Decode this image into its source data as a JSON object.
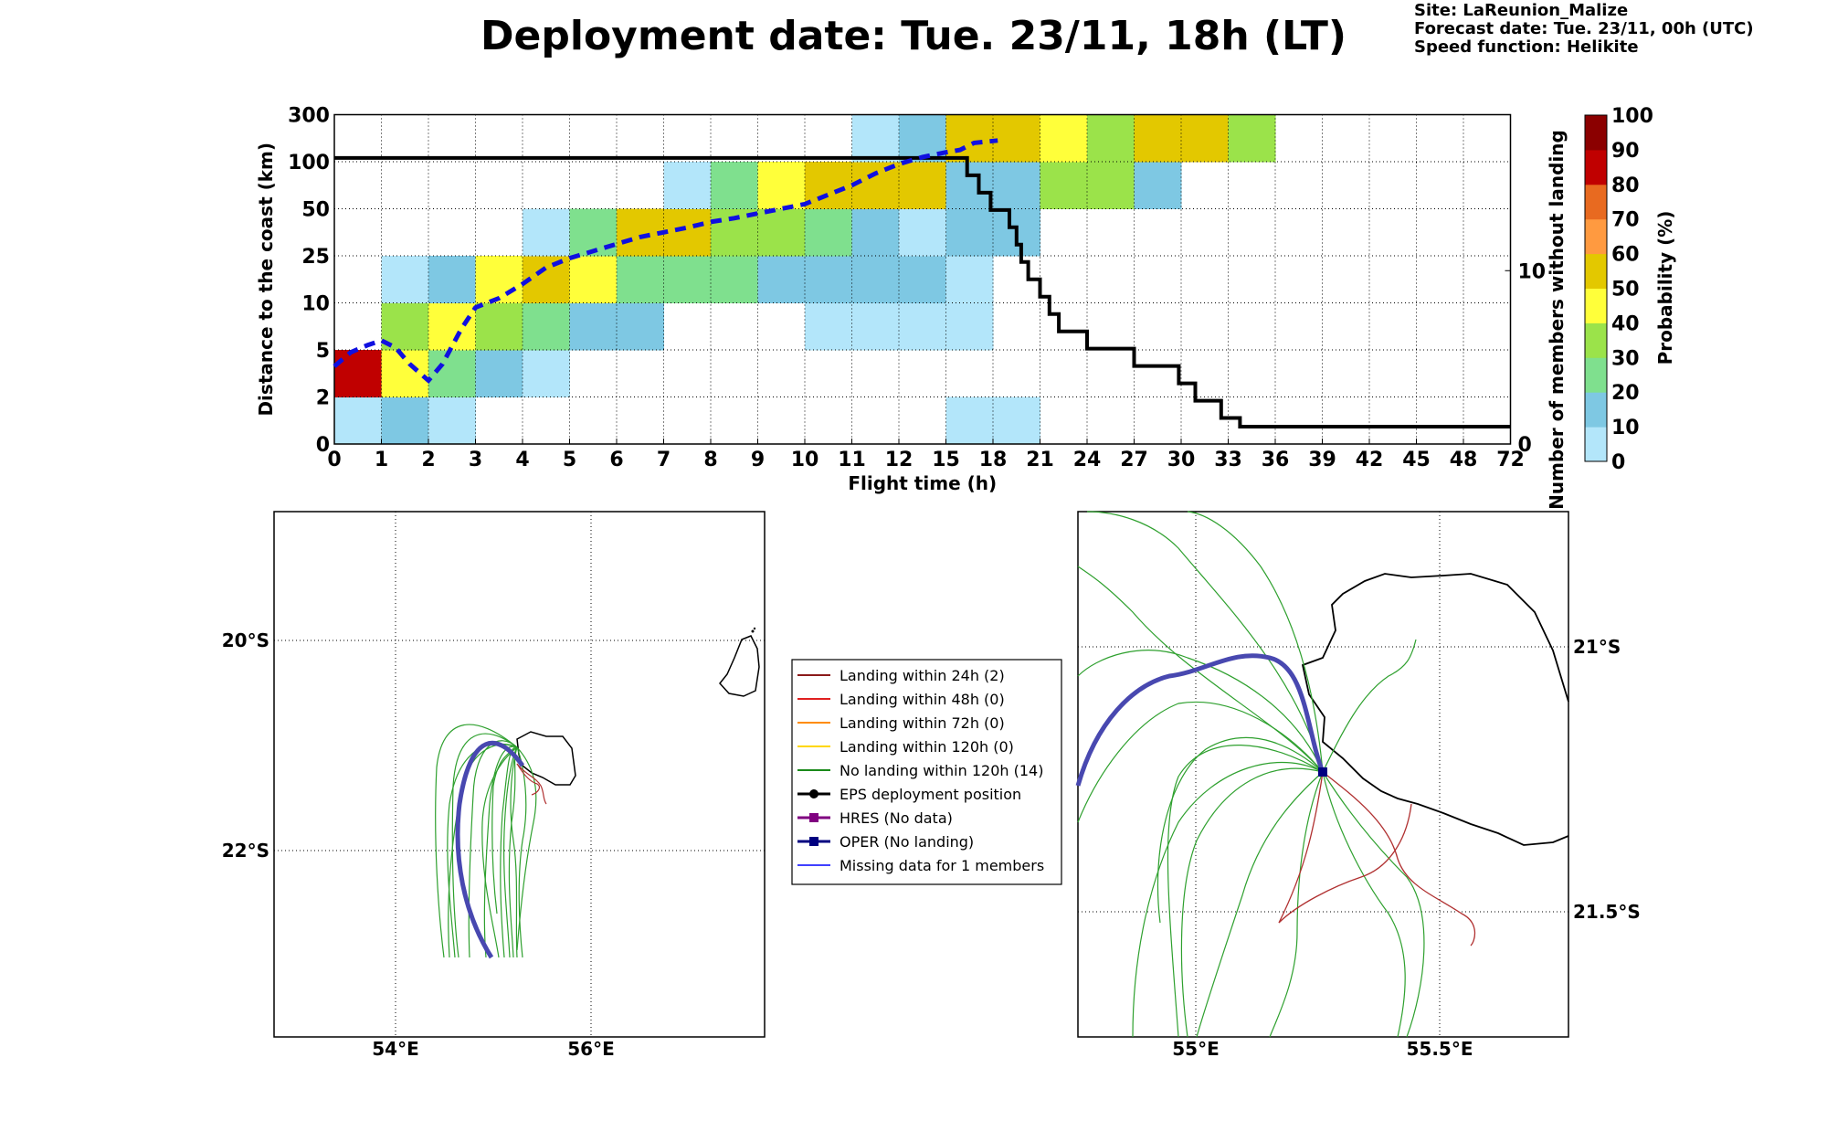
{
  "title": "Deployment date: Tue. 23/11, 18h (LT)",
  "info": {
    "site": "Site: LaReunion_Malize",
    "forecast": "Forecast date: Tue. 23/11, 00h (UTC)",
    "speed": "Speed function: Helikite"
  },
  "chart_data": [
    {
      "type": "heatmap",
      "xlabel": "Flight time (h)",
      "ylabel": "Distance to the coast (km)",
      "y2label": "Number of members without landing",
      "colorbar_label": "Probability (%)",
      "x_ticks": [
        "0",
        "1",
        "2",
        "3",
        "4",
        "5",
        "6",
        "7",
        "8",
        "9",
        "10",
        "11",
        "12",
        "15",
        "18",
        "21",
        "24",
        "27",
        "30",
        "33",
        "36",
        "39",
        "42",
        "45",
        "48",
        "72"
      ],
      "y_ticks": [
        "0",
        "2",
        "5",
        "10",
        "25",
        "50",
        "100",
        "300"
      ],
      "y2_ticks": [
        "0",
        "10"
      ],
      "y2lim": [
        0,
        19
      ],
      "grid": true,
      "colorbar": {
        "ticks": [
          "0",
          "10",
          "20",
          "30",
          "40",
          "50",
          "60",
          "70",
          "80",
          "90",
          "100"
        ],
        "colors": [
          "#b3e6fa",
          "#7ec8e3",
          "#7fe08e",
          "#9be34a",
          "#ffff3a",
          "#e3c800",
          "#ff9a40",
          "#e86a20",
          "#c00000",
          "#8b0000"
        ]
      },
      "cells": [
        {
          "x": 0,
          "y": 0,
          "p": 5
        },
        {
          "x": 1,
          "y": 0,
          "p": 15
        },
        {
          "x": 2,
          "y": 0,
          "p": 5
        },
        {
          "x": 13,
          "y": 0,
          "p": 5
        },
        {
          "x": 14,
          "y": 0,
          "p": 5
        },
        {
          "x": 0,
          "y": 1,
          "p": 85
        },
        {
          "x": 1,
          "y": 1,
          "p": 45
        },
        {
          "x": 2,
          "y": 1,
          "p": 25
        },
        {
          "x": 3,
          "y": 1,
          "p": 15
        },
        {
          "x": 4,
          "y": 1,
          "p": 5
        },
        {
          "x": 1,
          "y": 2,
          "p": 35
        },
        {
          "x": 2,
          "y": 2,
          "p": 45
        },
        {
          "x": 3,
          "y": 2,
          "p": 35
        },
        {
          "x": 4,
          "y": 2,
          "p": 25
        },
        {
          "x": 5,
          "y": 2,
          "p": 15
        },
        {
          "x": 6,
          "y": 2,
          "p": 15
        },
        {
          "x": 10,
          "y": 2,
          "p": 5
        },
        {
          "x": 11,
          "y": 2,
          "p": 5
        },
        {
          "x": 12,
          "y": 2,
          "p": 5
        },
        {
          "x": 13,
          "y": 2,
          "p": 5
        },
        {
          "x": 1,
          "y": 3,
          "p": 5
        },
        {
          "x": 2,
          "y": 3,
          "p": 15
        },
        {
          "x": 3,
          "y": 3,
          "p": 45
        },
        {
          "x": 4,
          "y": 3,
          "p": 55
        },
        {
          "x": 5,
          "y": 3,
          "p": 45
        },
        {
          "x": 6,
          "y": 3,
          "p": 25
        },
        {
          "x": 7,
          "y": 3,
          "p": 25
        },
        {
          "x": 8,
          "y": 3,
          "p": 25
        },
        {
          "x": 9,
          "y": 3,
          "p": 15
        },
        {
          "x": 10,
          "y": 3,
          "p": 15
        },
        {
          "x": 11,
          "y": 3,
          "p": 15
        },
        {
          "x": 12,
          "y": 3,
          "p": 15
        },
        {
          "x": 13,
          "y": 3,
          "p": 5
        },
        {
          "x": 4,
          "y": 4,
          "p": 5
        },
        {
          "x": 5,
          "y": 4,
          "p": 25
        },
        {
          "x": 6,
          "y": 4,
          "p": 55
        },
        {
          "x": 7,
          "y": 4,
          "p": 55
        },
        {
          "x": 8,
          "y": 4,
          "p": 35
        },
        {
          "x": 9,
          "y": 4,
          "p": 35
        },
        {
          "x": 10,
          "y": 4,
          "p": 25
        },
        {
          "x": 11,
          "y": 4,
          "p": 15
        },
        {
          "x": 12,
          "y": 4,
          "p": 5
        },
        {
          "x": 13,
          "y": 4,
          "p": 15
        },
        {
          "x": 14,
          "y": 4,
          "p": 15
        },
        {
          "x": 7,
          "y": 5,
          "p": 5
        },
        {
          "x": 8,
          "y": 5,
          "p": 25
        },
        {
          "x": 9,
          "y": 5,
          "p": 45
        },
        {
          "x": 10,
          "y": 5,
          "p": 55
        },
        {
          "x": 11,
          "y": 5,
          "p": 55
        },
        {
          "x": 12,
          "y": 5,
          "p": 55
        },
        {
          "x": 13,
          "y": 5,
          "p": 15
        },
        {
          "x": 14,
          "y": 5,
          "p": 15
        },
        {
          "x": 15,
          "y": 5,
          "p": 35
        },
        {
          "x": 16,
          "y": 5,
          "p": 35
        },
        {
          "x": 17,
          "y": 5,
          "p": 15
        },
        {
          "x": 11,
          "y": 6,
          "p": 5
        },
        {
          "x": 12,
          "y": 6,
          "p": 15
        },
        {
          "x": 13,
          "y": 6,
          "p": 55
        },
        {
          "x": 14,
          "y": 6,
          "p": 55
        },
        {
          "x": 15,
          "y": 6,
          "p": 45
        },
        {
          "x": 16,
          "y": 6,
          "p": 35
        },
        {
          "x": 17,
          "y": 6,
          "p": 55
        },
        {
          "x": 18,
          "y": 6,
          "p": 55
        },
        {
          "x": 19,
          "y": 6,
          "p": 35
        }
      ],
      "series": [
        {
          "style": "solid-black",
          "points": [
            [
              0,
              16.5
            ],
            [
              13.45,
              16.5
            ],
            [
              13.45,
              15.5
            ],
            [
              13.7,
              15.5
            ],
            [
              13.7,
              14.5
            ],
            [
              13.95,
              14.5
            ],
            [
              13.95,
              13.5
            ],
            [
              14.35,
              13.5
            ],
            [
              14.35,
              12.5
            ],
            [
              14.5,
              12.5
            ],
            [
              14.5,
              11.5
            ],
            [
              14.6,
              11.5
            ],
            [
              14.6,
              10.5
            ],
            [
              14.75,
              10.5
            ],
            [
              14.75,
              9.5
            ],
            [
              15,
              9.5
            ],
            [
              15,
              8.5
            ],
            [
              15.2,
              8.5
            ],
            [
              15.2,
              7.5
            ],
            [
              15.4,
              7.5
            ],
            [
              15.4,
              6.5
            ],
            [
              16,
              6.5
            ],
            [
              16,
              5.5
            ],
            [
              17,
              5.5
            ],
            [
              17,
              4.5
            ],
            [
              17.95,
              4.5
            ],
            [
              17.95,
              3.5
            ],
            [
              18.3,
              3.5
            ],
            [
              18.3,
              2.5
            ],
            [
              18.85,
              2.5
            ],
            [
              18.85,
              1.5
            ],
            [
              19.25,
              1.5
            ],
            [
              19.25,
              1
            ],
            [
              25,
              1
            ]
          ]
        },
        {
          "style": "dashed-blue",
          "points": [
            [
              0,
              1.65
            ],
            [
              0.35,
              1.95
            ],
            [
              0.7,
              2.1
            ],
            [
              1,
              2.2
            ],
            [
              1.3,
              2.05
            ],
            [
              1.6,
              1.7
            ],
            [
              2,
              1.35
            ],
            [
              2.3,
              1.7
            ],
            [
              2.7,
              2.45
            ],
            [
              3,
              2.9
            ],
            [
              3.5,
              3.1
            ],
            [
              4,
              3.4
            ],
            [
              4.5,
              3.75
            ],
            [
              5,
              3.95
            ],
            [
              5.5,
              4.1
            ],
            [
              6,
              4.25
            ],
            [
              6.5,
              4.4
            ],
            [
              7,
              4.5
            ],
            [
              7.5,
              4.6
            ],
            [
              8,
              4.72
            ],
            [
              8.5,
              4.8
            ],
            [
              9,
              4.9
            ],
            [
              9.5,
              5
            ],
            [
              10,
              5.1
            ],
            [
              10.5,
              5.3
            ],
            [
              11,
              5.5
            ],
            [
              11.5,
              5.75
            ],
            [
              12,
              5.95
            ],
            [
              12.5,
              6.1
            ],
            [
              13,
              6.2
            ],
            [
              13.3,
              6.25
            ],
            [
              13.6,
              6.4
            ],
            [
              14.1,
              6.45
            ]
          ]
        }
      ]
    },
    {
      "type": "map",
      "lat_ticks": [
        "20°S",
        "22°S"
      ],
      "lon_ticks": [
        "54°E",
        "56°E"
      ]
    },
    {
      "type": "map",
      "lat_ticks": [
        "21°S",
        "21.5°S"
      ],
      "lon_ticks": [
        "55°E",
        "55.5°E"
      ]
    }
  ],
  "legend": [
    {
      "label": "Landing within 24h (2)",
      "color": "#8b1a1a",
      "marker": ""
    },
    {
      "label": "Landing within 48h (0)",
      "color": "#e02020",
      "marker": ""
    },
    {
      "label": "Landing within 72h (0)",
      "color": "#ff8c00",
      "marker": ""
    },
    {
      "label": "Landing within 120h (0)",
      "color": "#ffd700",
      "marker": ""
    },
    {
      "label": "No landing within 120h (14)",
      "color": "#1a8a1a",
      "marker": ""
    },
    {
      "label": "EPS deployment position",
      "color": "#000000",
      "marker": "circle"
    },
    {
      "label": "HRES (No data)",
      "color": "#800080",
      "marker": "square"
    },
    {
      "label": "OPER (No landing)",
      "color": "#000080",
      "marker": "square"
    },
    {
      "label": "Missing data for 1 members",
      "color": "#4040ff",
      "marker": ""
    }
  ]
}
